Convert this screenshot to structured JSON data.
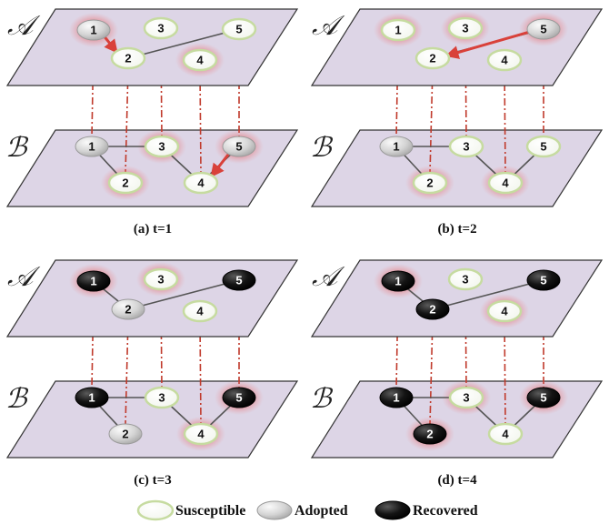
{
  "layers": [
    "𝒜",
    "ℬ"
  ],
  "states": {
    "S": {
      "label": "Susceptible"
    },
    "A": {
      "label": "Adopted"
    },
    "R": {
      "label": "Recovered"
    }
  },
  "colors": {
    "plane_fill": "#ddd5e6",
    "plane_stroke": "#333333",
    "edge": "#555555",
    "link": "#c0392b",
    "arrow": "#d9413a",
    "glow": "#e04040",
    "susceptible_fill": "#ffffff",
    "susceptible_ring": "#c6dba0",
    "adopted_fill": "#d6d6d6",
    "recovered_fill": "#111111"
  },
  "panels": [
    {
      "caption": "(a) t=1",
      "A": {
        "states": {
          "1": "A",
          "2": "S",
          "3": "S",
          "4": "S",
          "5": "S"
        },
        "glow": [
          1,
          4
        ],
        "arrow": [
          1,
          2
        ]
      },
      "B": {
        "states": {
          "1": "A",
          "2": "S",
          "3": "S",
          "4": "S",
          "5": "A"
        },
        "glow": [
          2,
          3,
          5
        ],
        "arrow": [
          5,
          4
        ]
      }
    },
    {
      "caption": "(b) t=2",
      "A": {
        "states": {
          "1": "S",
          "2": "S",
          "3": "S",
          "4": "S",
          "5": "A"
        },
        "glow": [
          1,
          3,
          5
        ],
        "arrow": [
          5,
          2
        ]
      },
      "B": {
        "states": {
          "1": "A",
          "2": "S",
          "3": "S",
          "4": "S",
          "5": "S"
        },
        "glow": [
          2,
          4
        ],
        "arrow": null
      }
    },
    {
      "caption": "(c) t=3",
      "A": {
        "states": {
          "1": "R",
          "2": "A",
          "3": "S",
          "4": "S",
          "5": "R"
        },
        "glow": [
          1,
          3
        ],
        "arrow": null
      },
      "B": {
        "states": {
          "1": "R",
          "2": "A",
          "3": "S",
          "4": "S",
          "5": "R"
        },
        "glow": [
          4,
          5
        ],
        "arrow": null
      }
    },
    {
      "caption": "(d) t=4",
      "A": {
        "states": {
          "1": "R",
          "2": "R",
          "3": "S",
          "4": "S",
          "5": "R"
        },
        "glow": [
          1,
          4
        ],
        "arrow": null
      },
      "B": {
        "states": {
          "1": "R",
          "2": "R",
          "3": "S",
          "4": "S",
          "5": "R"
        },
        "glow": [
          2,
          3,
          5
        ],
        "arrow": null
      }
    }
  ]
}
